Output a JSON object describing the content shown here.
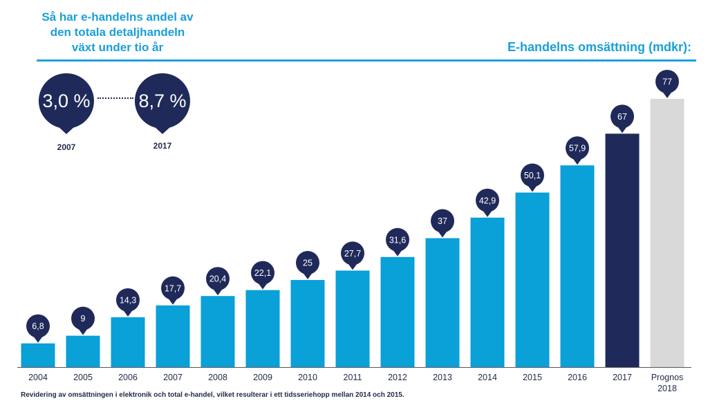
{
  "header": {
    "headline": [
      "Så har e-handelns andel av",
      "den totala detaljhandeln",
      "växt under tio år"
    ],
    "share": [
      {
        "value": "3,0 %",
        "year": "2007"
      },
      {
        "value": "8,7 %",
        "year": "2017"
      }
    ]
  },
  "chart_data": {
    "type": "bar",
    "title": "E-handelns omsättning (mdkr):",
    "xlabel": "",
    "ylabel": "",
    "ylim": [
      0,
      77
    ],
    "categories": [
      "2004",
      "2005",
      "2006",
      "2007",
      "2008",
      "2009",
      "2010",
      "2011",
      "2012",
      "2013",
      "2014",
      "2015",
      "2016",
      "2017",
      "Prognos 2018"
    ],
    "values": [
      6.8,
      9,
      14.3,
      17.7,
      20.4,
      22.1,
      25,
      27.7,
      31.6,
      37,
      42.9,
      50.1,
      57.9,
      67,
      77
    ],
    "value_labels": [
      "6,8",
      "9",
      "14,3",
      "17,7",
      "20,4",
      "22,1",
      "25",
      "27,7",
      "31,6",
      "37",
      "42,9",
      "50,1",
      "57,9",
      "67",
      "77"
    ],
    "bar_colors": [
      "#0aa0d8",
      "#0aa0d8",
      "#0aa0d8",
      "#0aa0d8",
      "#0aa0d8",
      "#0aa0d8",
      "#0aa0d8",
      "#0aa0d8",
      "#0aa0d8",
      "#0aa0d8",
      "#0aa0d8",
      "#0aa0d8",
      "#0aa0d8",
      "#1f2a5a",
      "#d9d9d9"
    ],
    "marker_color": "#1f2a5a",
    "axis_color": "#555555"
  },
  "footnote": "Revidering av omsättningen i elektronik och total e-handel, vilket resulterar i ett tidsseriehopp mellan 2014 och 2015."
}
